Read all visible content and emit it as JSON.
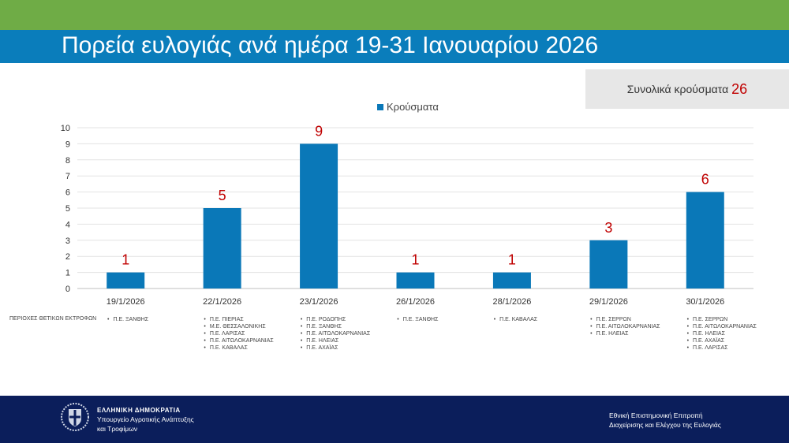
{
  "header": {
    "title": "Πορεία ευλογιάς ανά ημέρα 19-31 Ιανουαρίου 2026"
  },
  "total": {
    "label": "Συνολικά κρούσματα",
    "value": "26"
  },
  "colors": {
    "bar": "#0a78b8",
    "label": "#c00000",
    "top": "#6fac46",
    "title_band": "#0a7dbb",
    "footer": "#0b1e5b"
  },
  "chart_data": {
    "type": "bar",
    "legend": "Κρούσματα",
    "legend_position": "top",
    "categories": [
      "19/1/2026",
      "22/1/2026",
      "23/1/2026",
      "26/1/2026",
      "28/1/2026",
      "29/1/2026",
      "30/1/2026"
    ],
    "series": [
      {
        "name": "Κρούσματα",
        "values": [
          1,
          5,
          9,
          1,
          1,
          3,
          6
        ]
      }
    ],
    "ylim": [
      0,
      10
    ],
    "yticks": [
      "0",
      "1",
      "2",
      "3",
      "4",
      "5",
      "6",
      "7",
      "8",
      "9",
      "10"
    ],
    "grid": true,
    "data_labels": true
  },
  "regions": {
    "label": "ΠΕΡΙΟΧΕΣ ΘΕΤΙΚΩΝ ΕΚΤΡΟΦΩΝ",
    "lists": [
      [
        "Π.Ε. ΞΑΝΘΗΣ"
      ],
      [
        "Π.Ε. ΠΙΕΡΙΑΣ",
        "Μ.Ε. ΘΕΣΣΑΛΟΝΙΚΗΣ",
        "Π.Ε. ΛΑΡΙΣΑΣ",
        "Π.Ε.  ΑΙΤΩΛΟΚΑΡΝΑΝΙΑΣ",
        "Π.Ε. ΚΑΒΑΛΑΣ"
      ],
      [
        "Π.Ε. ΡΟΔΟΠΗΣ",
        "Π.Ε. ΞΑΝΘΗΣ",
        "Π.Ε. ΑΙΤΩΛΟΚΑΡΝΑΝΙΑΣ",
        "Π.Ε.  ΗΛΕΙΑΣ",
        "Π.Ε. ΑΧΑΪΑΣ"
      ],
      [
        "Π.Ε. ΞΑΝΘΗΣ"
      ],
      [
        "Π.Ε. ΚΑΒΑΛΑΣ"
      ],
      [
        "Π.Ε. ΣΕΡΡΩΝ",
        "Π.Ε. ΑΙΤΩΛΟΚΑΡΝΑΝΙΑΣ",
        "Π.Ε. ΗΛΕΙΑΣ"
      ],
      [
        "Π.Ε. ΣΕΡΡΩΝ",
        "Π.Ε. ΑΙΤΩΛΟΚΑΡΝΑΝΙΑΣ",
        "Π.Ε. ΗΛΕΙΑΣ",
        "Π.Ε. ΑΧΑΪΑΣ",
        "Π.Ε. ΛΑΡΙΣΑΣ"
      ]
    ]
  },
  "footer": {
    "gov_line1": "ΕΛΛΗΝΙΚΗ ΔΗΜΟΚΡΑΤΙΑ",
    "gov_line2": "Υπουργείο Αγροτικής Ανάπτυξης",
    "gov_line3": "και Τροφίμων",
    "committee_line1": "Εθνική Επιστημονική Επιτροπή",
    "committee_line2": "Διαχείρισης και Ελέγχου της Ευλογιάς"
  }
}
